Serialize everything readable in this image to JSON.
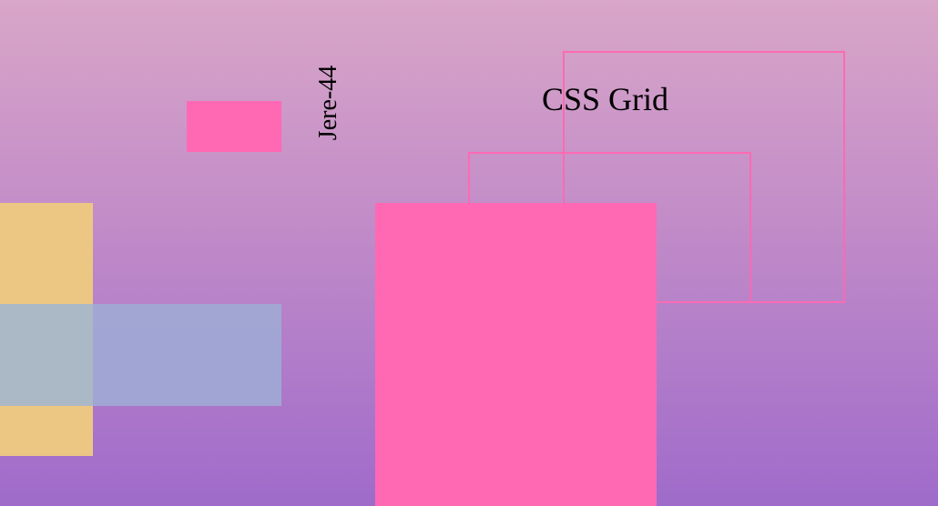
{
  "labels": {
    "vertical": "Jere-44",
    "title": "CSS Grid"
  },
  "colors": {
    "background_top": "#d8a6c8",
    "background_bottom": "#9f6bca",
    "pink": "#ff69b4",
    "yellow": "#ecc784",
    "blue": "#a0a8d4",
    "overlap": "#abb8c6"
  }
}
